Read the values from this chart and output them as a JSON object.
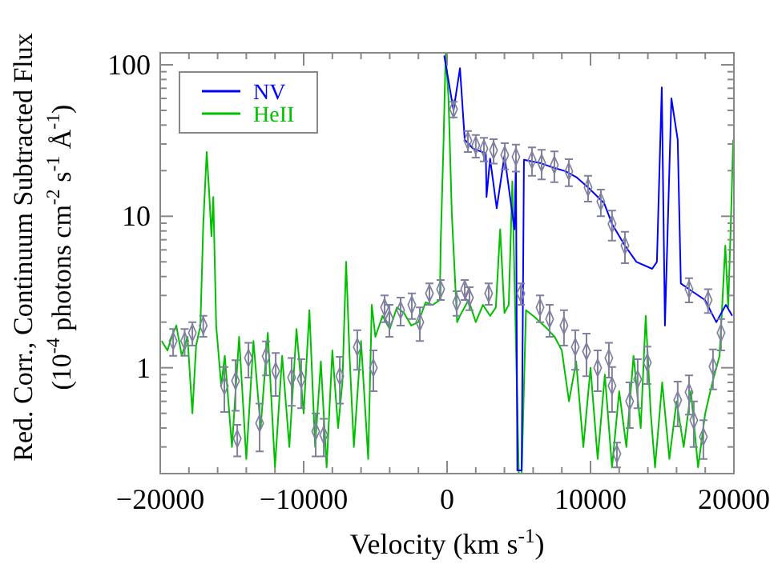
{
  "chart_data": {
    "type": "line",
    "xlabel": "Velocity (km s$^{-1}$)",
    "ylabel": "Red. Corr., Continuum Subtracted Flux\n(10$^{-4}$ photons cm$^{-2}$ s$^{-1}$ Å$^{-1}$)",
    "log": "y",
    "legend": "top left",
    "grid": false,
    "line_style": "solid",
    "marker": "none",
    "xlim": [
      -20000,
      20000
    ],
    "ylim": [
      0.2,
      120
    ],
    "xticks": [
      -20000,
      {
        "value": -18000,
        "label": null
      },
      {
        "value": -16000,
        "label": null
      },
      {
        "value": -14000,
        "label": null
      },
      {
        "value": -12000,
        "label": null
      },
      -10000,
      {
        "value": -8000,
        "label": null
      },
      {
        "value": -6000,
        "label": null
      },
      {
        "value": -4000,
        "label": null
      },
      {
        "value": -2000,
        "label": null
      },
      0,
      {
        "value": 2000,
        "label": null
      },
      {
        "value": 4000,
        "label": null
      },
      {
        "value": 6000,
        "label": null
      },
      {
        "value": 8000,
        "label": null
      },
      10000,
      {
        "value": 12000,
        "label": null
      },
      {
        "value": 14000,
        "label": null
      },
      {
        "value": 16000,
        "label": null
      },
      {
        "value": 18000,
        "label": null
      },
      20000
    ],
    "yticks": [
      {
        "value": 0.2,
        "label": null
      },
      {
        "value": 0.3,
        "label": null
      },
      {
        "value": 0.4,
        "label": null
      },
      {
        "value": 0.5,
        "label": null
      },
      {
        "value": 0.6,
        "label": null
      },
      {
        "value": 0.7,
        "label": null
      },
      {
        "value": 0.8,
        "label": null
      },
      {
        "value": 0.9,
        "label": null
      },
      1,
      {
        "value": 2,
        "label": null
      },
      {
        "value": 3,
        "label": null
      },
      {
        "value": 4,
        "label": null
      },
      {
        "value": 5,
        "label": null
      },
      {
        "value": 6,
        "label": null
      },
      {
        "value": 7,
        "label": null
      },
      {
        "value": 8,
        "label": null
      },
      {
        "value": 9,
        "label": null
      },
      10,
      {
        "value": 20,
        "label": null
      },
      {
        "value": 30,
        "label": null
      },
      {
        "value": 40,
        "label": null
      },
      {
        "value": 50,
        "label": null
      },
      {
        "value": 60,
        "label": null
      },
      {
        "value": 70,
        "label": null
      },
      {
        "value": 80,
        "label": null
      },
      {
        "value": 90,
        "label": null
      },
      100
    ],
    "series": [
      {
        "name": "HeII",
        "color": "#00c000",
        "x": [
          -19900,
          -19500,
          -19100,
          -18880,
          -18500,
          -18100,
          -17760,
          -17500,
          -17200,
          -17000,
          -16760,
          -16600,
          -16430,
          -16300,
          -16100,
          -15750,
          -15500,
          -15000,
          -14500,
          -14000,
          -13500,
          -13000,
          -12500,
          -12000,
          -11500,
          -11000,
          -10500,
          -10000,
          -9600,
          -9200,
          -8800,
          -8400,
          -8000,
          -7600,
          -7300,
          -7040,
          -6800,
          -6500,
          -6000,
          -5500,
          -5250,
          -5000,
          -4500,
          -4000,
          -3500,
          -3000,
          -2500,
          -2000,
          -1500,
          -1000,
          -500,
          -450,
          -250,
          -100,
          100,
          330,
          700,
          1000,
          1500,
          2000,
          2500,
          3000,
          3400,
          3700,
          4000,
          4300,
          4550,
          5000,
          5200,
          5500,
          6000,
          6500,
          7000,
          7500,
          8000,
          8500,
          9000,
          9500,
          10000,
          10500,
          11000,
          11500,
          12000,
          12500,
          13000,
          13500,
          13850,
          14200,
          14500,
          15000,
          15500,
          16000,
          16500,
          17000,
          17500,
          18000,
          18500,
          19000,
          19400,
          19600,
          19800,
          19950
        ],
        "values": [
          1.5,
          1.3,
          1.7,
          1.9,
          1.2,
          1.6,
          0.5,
          1.4,
          1.9,
          8.9,
          26.6,
          15,
          7.4,
          13.4,
          1.9,
          0.76,
          1.2,
          0.3,
          1.6,
          0.25,
          1.5,
          0.4,
          1.7,
          0.22,
          1.2,
          0.3,
          1.8,
          0.5,
          2.4,
          0.3,
          1.1,
          0.22,
          1.3,
          0.4,
          0.8,
          5,
          1.2,
          0.3,
          1.5,
          0.25,
          2.6,
          1.6,
          2.2,
          1.8,
          2.5,
          2.3,
          1.9,
          2,
          2.7,
          2.6,
          2.8,
          6.4,
          30,
          118,
          60,
          10.4,
          2,
          2.3,
          2.8,
          2,
          2.6,
          2.2,
          2.5,
          8.2,
          2.3,
          2.6,
          17,
          0.2,
          0.2,
          2.4,
          2.2,
          2,
          1.8,
          1.6,
          1.3,
          0.6,
          1.1,
          0.3,
          1,
          0.25,
          0.9,
          0.22,
          0.7,
          0.3,
          1.2,
          0.4,
          2.2,
          0.5,
          0.22,
          0.8,
          0.25,
          0.6,
          0.3,
          0.7,
          0.22,
          0.5,
          0.8,
          1.2,
          6.4,
          2.5,
          10,
          32
        ]
      },
      {
        "name": "NV",
        "color": "#0000ff",
        "x": [
          -200,
          450,
          900,
          1230,
          1800,
          2700,
          2750,
          3000,
          3460,
          4000,
          4700,
          4800,
          4900,
          5200,
          5360,
          6480,
          7370,
          8270,
          9050,
          9830,
          10950,
          11500,
          12400,
          13200,
          14300,
          14630,
          14970,
          15190,
          15640,
          16080,
          16300,
          16870,
          17980,
          18770,
          19440,
          19880
        ],
        "values": [
          115,
          50,
          95,
          32,
          28,
          26,
          13.4,
          24,
          11.3,
          25,
          8.2,
          23.6,
          0.21,
          0.21,
          23.6,
          22.5,
          21,
          19.8,
          18,
          15.5,
          12.2,
          8.9,
          6.4,
          5,
          4.5,
          5,
          71,
          1.9,
          60,
          32,
          3.6,
          3.3,
          2.8,
          2,
          2.6,
          2.2
        ]
      },
      {
        "type": "scatter",
        "color": "#7f7f9f",
        "marker": "diamond",
        "x": [
          -19100,
          -18300,
          -17760,
          -17000,
          -15530,
          -14750,
          -14630,
          -13850,
          -13070,
          -12620,
          -11950,
          -10840,
          -10170,
          -9160,
          -8600,
          -7480,
          -6260,
          -5140,
          -4360,
          -4020,
          -3240,
          -2460,
          -1900,
          -1230,
          -450,
          450,
          670,
          1230,
          1450,
          1560,
          2000,
          2570,
          2900,
          3240,
          4020,
          4800,
          5140,
          5920,
          6480,
          6590,
          7150,
          7480,
          8150,
          8490,
          8940,
          9720,
          9830,
          10500,
          10720,
          11280,
          11500,
          11500,
          11840,
          12400,
          12730,
          13290,
          13960,
          16080,
          16870,
          16870,
          17200,
          17870,
          18200,
          18540,
          19100
        ],
        "values": [
          1.5,
          1.5,
          1.7,
          1.9,
          0.76,
          0.82,
          0.34,
          1.16,
          0.43,
          1.19,
          0.95,
          0.86,
          0.84,
          0.38,
          0.36,
          0.88,
          1.37,
          1,
          2.5,
          2.1,
          2.4,
          2.6,
          2,
          3.1,
          3.3,
          51,
          2.7,
          3.3,
          31.6,
          2.9,
          29.4,
          28,
          3.1,
          27.3,
          25.4,
          24.7,
          3.1,
          23.5,
          2.5,
          22.5,
          2.1,
          21.8,
          1.9,
          19.8,
          1.37,
          1.28,
          15.5,
          1,
          12.5,
          1.16,
          0.76,
          8.9,
          0.27,
          6.4,
          0.6,
          0.84,
          1.08,
          0.61,
          0.69,
          3.3,
          0.45,
          0.35,
          2.8,
          1.02,
          1.7
        ],
        "errors": [
          0.3,
          0.3,
          0.3,
          0.3,
          0.25,
          0.3,
          0.08,
          0.3,
          0.15,
          0.3,
          0.3,
          0.3,
          0.3,
          0.12,
          0.1,
          0.3,
          0.4,
          0.3,
          0.5,
          0.5,
          0.5,
          0.5,
          0.5,
          0.5,
          0.5,
          6,
          0.5,
          0.5,
          5,
          0.5,
          5,
          5,
          0.5,
          5,
          5,
          5,
          0.5,
          5,
          0.5,
          5,
          0.5,
          5,
          0.5,
          4,
          0.4,
          0.4,
          3,
          0.3,
          2.5,
          0.3,
          0.25,
          2,
          0.05,
          1.5,
          0.2,
          0.3,
          0.3,
          0.2,
          0.2,
          0.6,
          0.15,
          0.1,
          0.5,
          0.3,
          0.4
        ]
      }
    ]
  }
}
